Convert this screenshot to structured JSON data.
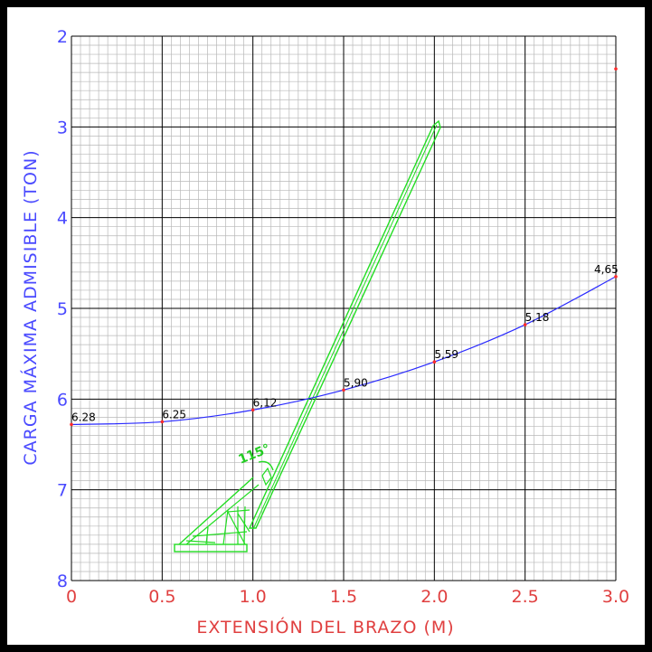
{
  "chart_data": {
    "type": "line",
    "xlabel": "EXTENSIÓN DEL BRAZO (M)",
    "ylabel": "CARGA MÁXIMA ADMISIBLE (TON)",
    "xlim": [
      0,
      3.0
    ],
    "ylim": [
      2,
      8
    ],
    "y_inverted": true,
    "grid": true,
    "x_ticks": [
      "0",
      "0.5",
      "1.0",
      "1.5",
      "2.0",
      "2.5",
      "3.0"
    ],
    "y_ticks": [
      "2",
      "3",
      "4",
      "5",
      "6",
      "7",
      "8"
    ],
    "x_tick_values": [
      0,
      0.5,
      1.0,
      1.5,
      2.0,
      2.5,
      3.0
    ],
    "y_tick_values": [
      2,
      3,
      4,
      5,
      6,
      7,
      8
    ],
    "series": [
      {
        "x": [
          0,
          0.5,
          1.0,
          1.5,
          2.0,
          2.5,
          3.0
        ],
        "values": [
          6.28,
          6.25,
          6.12,
          5.9,
          5.59,
          5.18,
          4.65
        ],
        "labels": [
          "6.28",
          "6.25",
          "6,12",
          "5,90",
          "5,59",
          "5,18",
          "4,65"
        ],
        "color": "#2a2aff"
      }
    ],
    "extra_point": {
      "x": 3.0,
      "y": 2.36
    },
    "annotation": "115°",
    "colors": {
      "curve": "#2a2aff",
      "points": "#ff2a2a",
      "crane": "#22dd22",
      "x_text": "#e04040",
      "y_text": "#4a4aff",
      "frame": "#000000"
    }
  }
}
